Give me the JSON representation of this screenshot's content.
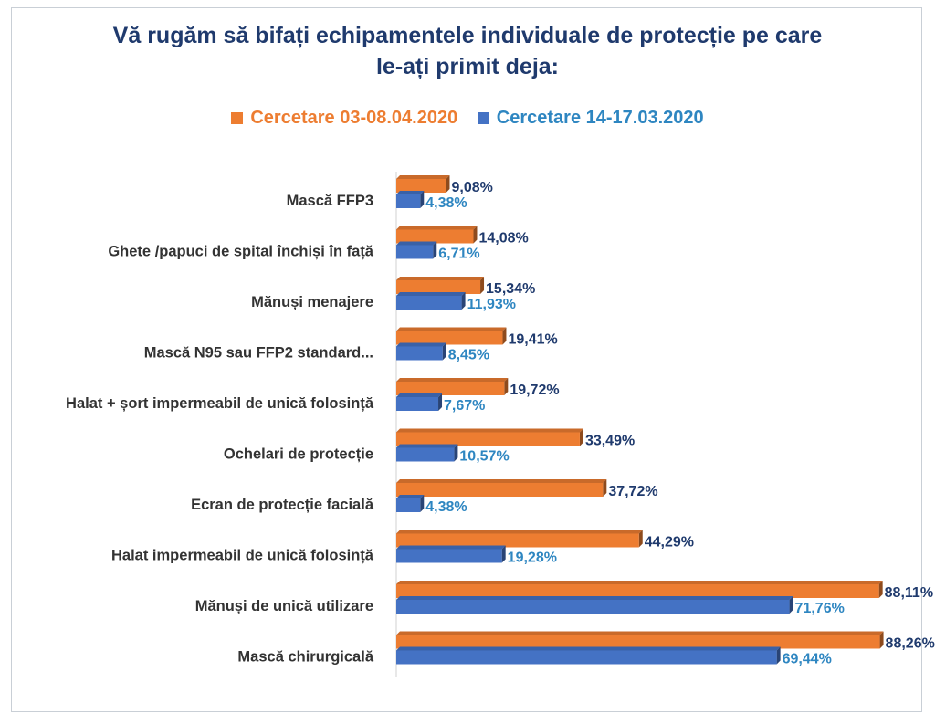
{
  "chart_data": {
    "type": "bar",
    "orientation": "horizontal",
    "title_lines": [
      "Vă rugăm să bifați echipamentele individuale de protecție pe care",
      "le-ați primit deja:"
    ],
    "categories": [
      "Mască FFP3",
      "Ghete /papuci de spital închiși în față",
      "Mănuși menajere",
      "Mască N95 sau FFP2 standard...",
      "Halat + șort impermeabil de unică folosință",
      "Ochelari de protecție",
      "Ecran de protecție facială",
      "Halat impermeabil de unică folosință",
      "Mănuși de unică utilizare",
      "Mască chirurgicală"
    ],
    "series": [
      {
        "name": "Cercetare 03-08.04.2020",
        "color": "#ed7d31",
        "label_color": "#1f3a6d",
        "values": [
          9.08,
          14.08,
          15.34,
          19.41,
          19.72,
          33.49,
          37.72,
          44.29,
          88.11,
          88.26
        ],
        "labels": [
          "9,08%",
          "14,08%",
          "15,34%",
          "19,41%",
          "19,72%",
          "33,49%",
          "37,72%",
          "44,29%",
          "88,11%",
          "88,26%"
        ]
      },
      {
        "name": "Cercetare 14-17.03.2020",
        "color": "#4472c4",
        "label_color": "#2e86c1",
        "values": [
          4.38,
          6.71,
          11.93,
          8.45,
          7.67,
          10.57,
          4.38,
          19.28,
          71.76,
          69.44
        ],
        "labels": [
          "4,38%",
          "6,71%",
          "11,93%",
          "8,45%",
          "7,67%",
          "10,57%",
          "4,38%",
          "19,28%",
          "71,76%",
          "69,44%"
        ]
      }
    ],
    "xlim": [
      0,
      90
    ],
    "legend_position": "top-center",
    "grid": false
  }
}
